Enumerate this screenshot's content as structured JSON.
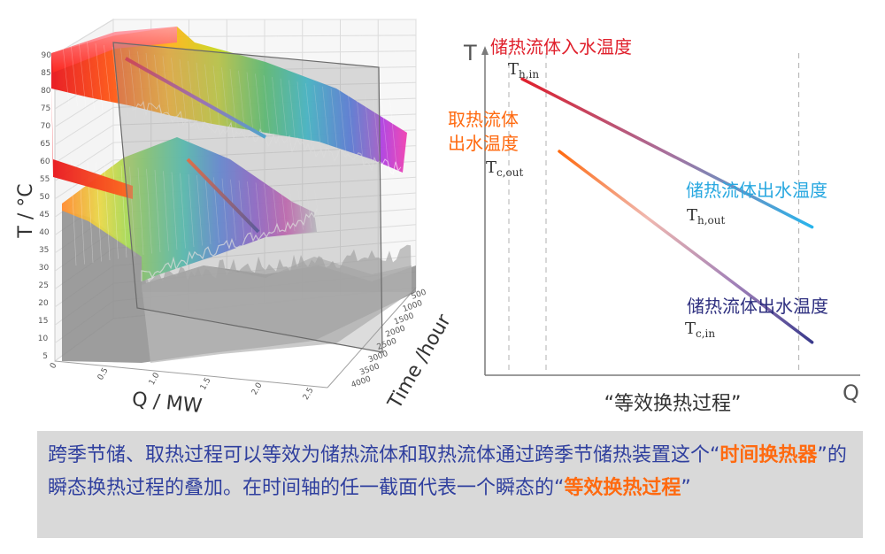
{
  "chart_data": [
    {
      "type": "surface3d",
      "title": "",
      "xlabel": "Q / MW",
      "ylabel": "T / °C",
      "zlabel": "Time /hour",
      "x_ticks": [
        "0",
        "0.5",
        "1.0",
        "1.5",
        "2.0",
        "2.5"
      ],
      "y_ticks": [
        "5",
        "10",
        "15",
        "20",
        "25",
        "30",
        "35",
        "40",
        "45",
        "50",
        "55",
        "60",
        "65",
        "70",
        "75",
        "80",
        "85",
        "90"
      ],
      "z_ticks": [
        "500",
        "1000",
        "1500",
        "2000",
        "2500",
        "3000",
        "3500",
        "4000"
      ],
      "xlim": [
        0,
        2.8
      ],
      "ylim": [
        5,
        90
      ],
      "zlim": [
        0,
        4200
      ]
    },
    {
      "type": "line",
      "title": "",
      "xlabel": "Q",
      "ylabel": "T",
      "series": [
        {
          "name": "",
          "label_top": "储热流体入水温度",
          "label_bottom": "储热流体出水温度",
          "start_sym": "T",
          "start_sub": "h,in",
          "end_sym": "T",
          "end_sub": "h,out",
          "start": [
            0.1,
            0.9
          ],
          "end": [
            0.88,
            0.45
          ],
          "color_start": "#e0202c",
          "color_end": "#28b4ec"
        },
        {
          "name": "",
          "label_top": "取热流体出水温度",
          "label_bottom": "储热流体出水温度",
          "start_sym": "T",
          "start_sub": "c,out",
          "end_sym": "T",
          "end_sub": "c,in",
          "start": [
            0.2,
            0.68
          ],
          "end": [
            0.88,
            0.1
          ],
          "color_start": "#ff6a10",
          "color_end": "#3a3a8c"
        }
      ],
      "dashed_x": [
        0.1,
        0.2,
        0.88
      ],
      "annotation": "“等效换热过程”"
    }
  ],
  "labels": {
    "h_in": "储热流体入水温度",
    "c_out_1": "取热流体",
    "c_out_2": "出水温度",
    "h_out": "储热流体出水温度",
    "c_in": "储热流体出水温度",
    "process": "“等效换热过程”"
  },
  "caption": {
    "p1": "跨季节储、取热过程可以等效为储热流体和取热流体通过跨季节储热装置这个“",
    "hl1": "时间换热器",
    "p2": "”的瞬态换热过程的叠加。在时间轴的任一截面代表一个瞬态的“",
    "hl2": "等效换热过程",
    "p3": "”"
  },
  "colors": {
    "orange": "#ff6a10",
    "red": "#e0202c",
    "cyan": "#28b4ec",
    "navy": "#3a3a8c",
    "caption_text": "#2f3f9e",
    "caption_bg": "#d9d9d9"
  }
}
